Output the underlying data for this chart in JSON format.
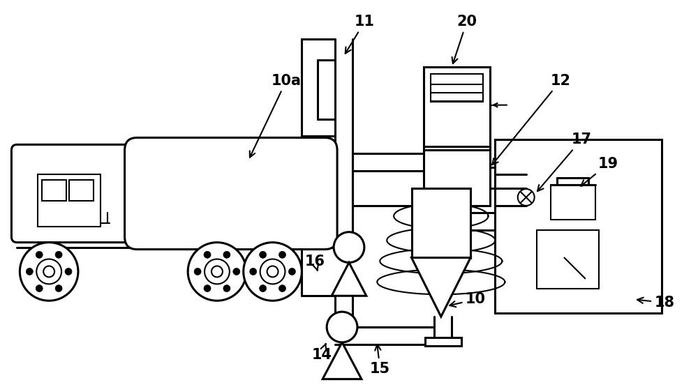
{
  "bg_color": "#ffffff",
  "line_color": "#000000",
  "lw": 1.5,
  "lw2": 2.2,
  "figsize": [
    10.0,
    5.55
  ],
  "dpi": 100,
  "label_fs": 15
}
